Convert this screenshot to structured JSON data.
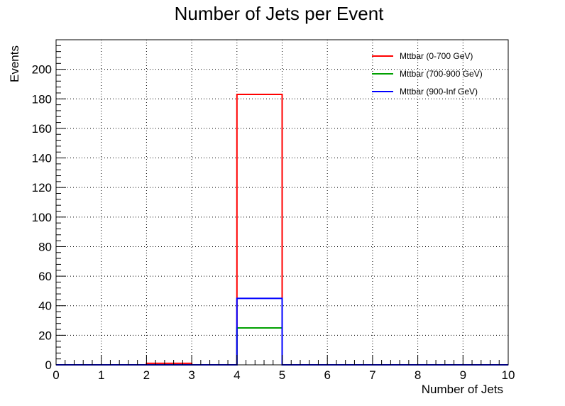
{
  "chart_data": {
    "type": "histogram",
    "title": "Number of Jets per Event",
    "xlabel": "Number of Jets",
    "ylabel": "Events",
    "xlim": [
      0,
      10
    ],
    "ylim": [
      0,
      220
    ],
    "grid": true,
    "legend_position": "top-right",
    "x_ticks": [
      "0",
      "1",
      "2",
      "3",
      "4",
      "5",
      "6",
      "7",
      "8",
      "9",
      "10"
    ],
    "y_ticks": [
      "0",
      "20",
      "40",
      "60",
      "80",
      "100",
      "120",
      "140",
      "160",
      "180",
      "200"
    ],
    "bin_edges": [
      0,
      1,
      2,
      3,
      4,
      5,
      6,
      7,
      8,
      9,
      10
    ],
    "series": [
      {
        "name": "Mttbar (0-700 GeV)",
        "color": "#ff0000",
        "values": [
          0,
          0,
          1,
          0,
          183,
          0,
          0,
          0,
          0,
          0
        ]
      },
      {
        "name": "Mttbar (700-900 GeV)",
        "color": "#00a000",
        "values": [
          0,
          0,
          0,
          0,
          25,
          0,
          0,
          0,
          0,
          0
        ]
      },
      {
        "name": "Mttbar (900-Inf GeV)",
        "color": "#0000ff",
        "values": [
          0,
          0,
          0,
          0,
          45,
          0,
          0,
          0,
          0,
          0
        ]
      }
    ]
  }
}
